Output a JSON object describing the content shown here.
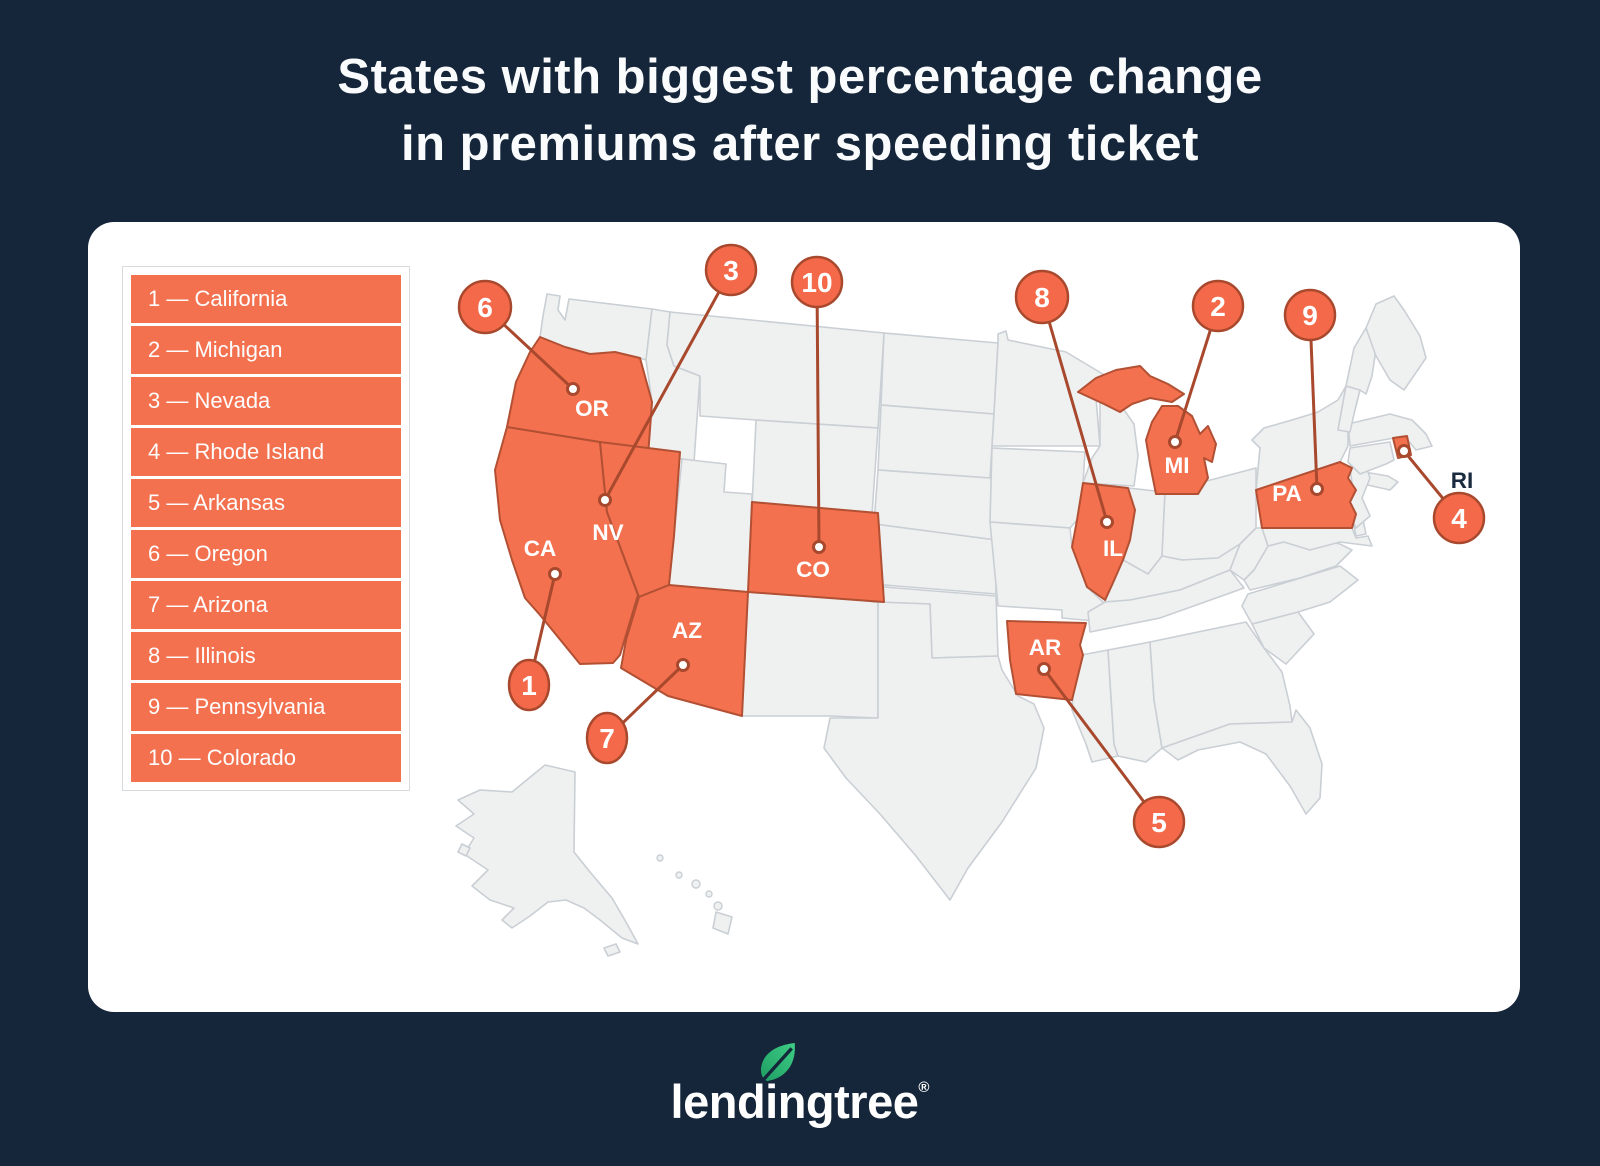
{
  "title": {
    "line1": "States with biggest percentage change",
    "line2": "in premiums after speeding ticket"
  },
  "legend": {
    "items": [
      {
        "rank": "1",
        "state": "California",
        "label": "1 — California"
      },
      {
        "rank": "2",
        "state": "Michigan",
        "label": "2 — Michigan"
      },
      {
        "rank": "3",
        "state": "Nevada",
        "label": "3 — Nevada"
      },
      {
        "rank": "4",
        "state": "Rhode Island",
        "label": "4 — Rhode Island"
      },
      {
        "rank": "5",
        "state": "Arkansas",
        "label": "5 — Arkansas"
      },
      {
        "rank": "6",
        "state": "Oregon",
        "label": "6 — Oregon"
      },
      {
        "rank": "7",
        "state": "Arizona",
        "label": "7 — Arizona"
      },
      {
        "rank": "8",
        "state": "Illinois",
        "label": "8 — Illinois"
      },
      {
        "rank": "9",
        "state": "Pennsylvania",
        "label": "9 — Pennsylvania"
      },
      {
        "rank": "10",
        "state": "Colorado",
        "label": "10 — Colorado"
      }
    ]
  },
  "map": {
    "markers": [
      {
        "number": "1",
        "abbr": "CA",
        "state": "California"
      },
      {
        "number": "2",
        "abbr": "MI",
        "state": "Michigan"
      },
      {
        "number": "3",
        "abbr": "NV",
        "state": "Nevada"
      },
      {
        "number": "4",
        "abbr": "RI",
        "state": "Rhode Island"
      },
      {
        "number": "5",
        "abbr": "AR",
        "state": "Arkansas"
      },
      {
        "number": "6",
        "abbr": "OR",
        "state": "Oregon"
      },
      {
        "number": "7",
        "abbr": "AZ",
        "state": "Arizona"
      },
      {
        "number": "8",
        "abbr": "IL",
        "state": "Illinois"
      },
      {
        "number": "9",
        "abbr": "PA",
        "state": "Pennsylvania"
      },
      {
        "number": "10",
        "abbr": "CO",
        "state": "Colorado"
      }
    ]
  },
  "footer": {
    "logo_text": "lendingtree",
    "registered_mark": "®",
    "logo_icon": "leaf-icon"
  },
  "colors": {
    "background_navy": "#15263A",
    "accent_orange": "#F4714F",
    "marker_fill": "#F3694A",
    "marker_outline": "#A8492E",
    "state_gray_fill": "#EFF1F1",
    "state_gray_border": "#C9CFD4",
    "orange_state_border": "#B25034",
    "logo_green": "#2FB877"
  }
}
